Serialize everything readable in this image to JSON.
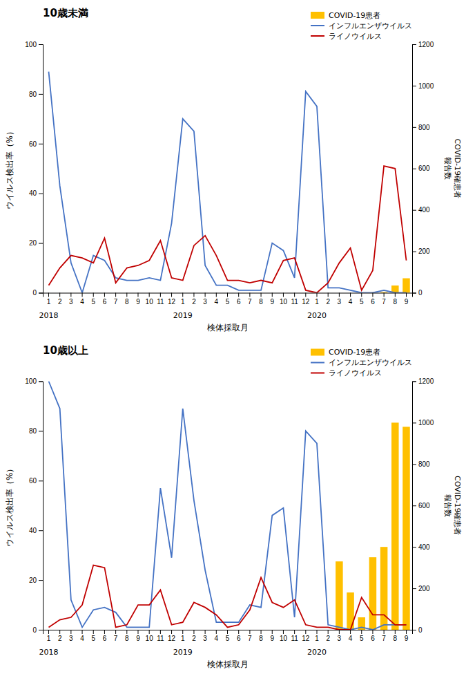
{
  "chart_data": [
    {
      "type": "bar",
      "title": "10歳未満",
      "xlabel": "検体採取月",
      "ylabel": "ウイルス検出率（%）",
      "y2label": [
        "COVID-19確患者",
        "報告数"
      ],
      "categories": [
        "1",
        "2",
        "3",
        "4",
        "5",
        "6",
        "7",
        "8",
        "9",
        "10",
        "11",
        "12",
        "1",
        "2",
        "3",
        "4",
        "5",
        "6",
        "7",
        "8",
        "9",
        "10",
        "11",
        "12",
        "1",
        "2",
        "3",
        "4",
        "5",
        "6",
        "7",
        "8",
        "9"
      ],
      "annotations": [
        {
          "text": "2018",
          "x": 0
        },
        {
          "text": "2019",
          "x": 12
        },
        {
          "text": "2020",
          "x": 24
        }
      ],
      "series": [
        {
          "name": "COVID-19患者",
          "type": "bar",
          "axis": "y2",
          "color": "#FFC000",
          "values": [
            0,
            0,
            0,
            0,
            0,
            0,
            0,
            0,
            0,
            0,
            0,
            0,
            0,
            0,
            0,
            0,
            0,
            0,
            0,
            0,
            0,
            0,
            0,
            0,
            0,
            0,
            0,
            0,
            0,
            0,
            4,
            35,
            70
          ]
        },
        {
          "name": "インフルエンザウイルス",
          "type": "line",
          "color": "#4472C4",
          "values": [
            89,
            43,
            12,
            0,
            15,
            13,
            6,
            5,
            5,
            6,
            5,
            28,
            70,
            65,
            11,
            3,
            3,
            1,
            1,
            1,
            20,
            17,
            6,
            81,
            75,
            2,
            2,
            1,
            0,
            0,
            1,
            0,
            0
          ]
        },
        {
          "name": "ライノウイルス",
          "type": "line",
          "color": "#C00000",
          "values": [
            3,
            10,
            15,
            14,
            12,
            22,
            4,
            10,
            11,
            13,
            21,
            6,
            5,
            19,
            23,
            15,
            5,
            5,
            4,
            5,
            4,
            13,
            14,
            1,
            0,
            4,
            12,
            18,
            1,
            9,
            51,
            50,
            13
          ]
        }
      ],
      "ylim": [
        0,
        100
      ],
      "yticks": [
        0,
        20,
        40,
        60,
        80,
        100
      ],
      "y2lim": [
        0,
        1200
      ],
      "y2ticks": [
        0,
        200,
        400,
        600,
        800,
        1000,
        1200
      ],
      "grid": false,
      "legend": "upper right"
    },
    {
      "type": "bar",
      "title": "10歳以上",
      "xlabel": "検体採取月",
      "ylabel": "ウイルス検出率（%）",
      "y2label": [
        "COVID-19確患者",
        "報告数"
      ],
      "categories": [
        "1",
        "2",
        "3",
        "4",
        "5",
        "6",
        "7",
        "8",
        "9",
        "10",
        "11",
        "12",
        "1",
        "2",
        "3",
        "4",
        "5",
        "6",
        "7",
        "8",
        "9",
        "10",
        "11",
        "12",
        "1",
        "2",
        "3",
        "4",
        "5",
        "6",
        "7",
        "8",
        "9"
      ],
      "annotations": [
        {
          "text": "2018",
          "x": 0
        },
        {
          "text": "2019",
          "x": 12
        },
        {
          "text": "2020",
          "x": 24
        }
      ],
      "series": [
        {
          "name": "COVID-19患者",
          "type": "bar",
          "axis": "y2",
          "color": "#FFC000",
          "values": [
            0,
            0,
            0,
            0,
            0,
            0,
            0,
            0,
            0,
            0,
            0,
            0,
            0,
            0,
            0,
            0,
            0,
            0,
            0,
            0,
            0,
            0,
            0,
            0,
            0,
            0,
            330,
            180,
            60,
            350,
            400,
            1000,
            980
          ]
        },
        {
          "name": "インフルエンザウイルス",
          "type": "line",
          "color": "#4472C4",
          "values": [
            100,
            89,
            12,
            1,
            8,
            9,
            7,
            1,
            1,
            1,
            57,
            29,
            89,
            52,
            24,
            3,
            3,
            3,
            10,
            9,
            46,
            49,
            5,
            80,
            75,
            2,
            1,
            0,
            1,
            0,
            2,
            2,
            2
          ]
        },
        {
          "name": "ライノウイルス",
          "type": "line",
          "color": "#C00000",
          "values": [
            1,
            4,
            5,
            10,
            26,
            25,
            1,
            2,
            10,
            10,
            16,
            2,
            3,
            11,
            9,
            6,
            1,
            2,
            8,
            21,
            11,
            9,
            12,
            2,
            1,
            1,
            0,
            0,
            13,
            6,
            6,
            2,
            2
          ]
        }
      ],
      "ylim": [
        0,
        100
      ],
      "yticks": [
        0,
        20,
        40,
        60,
        80,
        100
      ],
      "y2lim": [
        0,
        1200
      ],
      "y2ticks": [
        0,
        200,
        400,
        600,
        800,
        1000,
        1200
      ],
      "grid": false,
      "legend": "upper right"
    }
  ]
}
